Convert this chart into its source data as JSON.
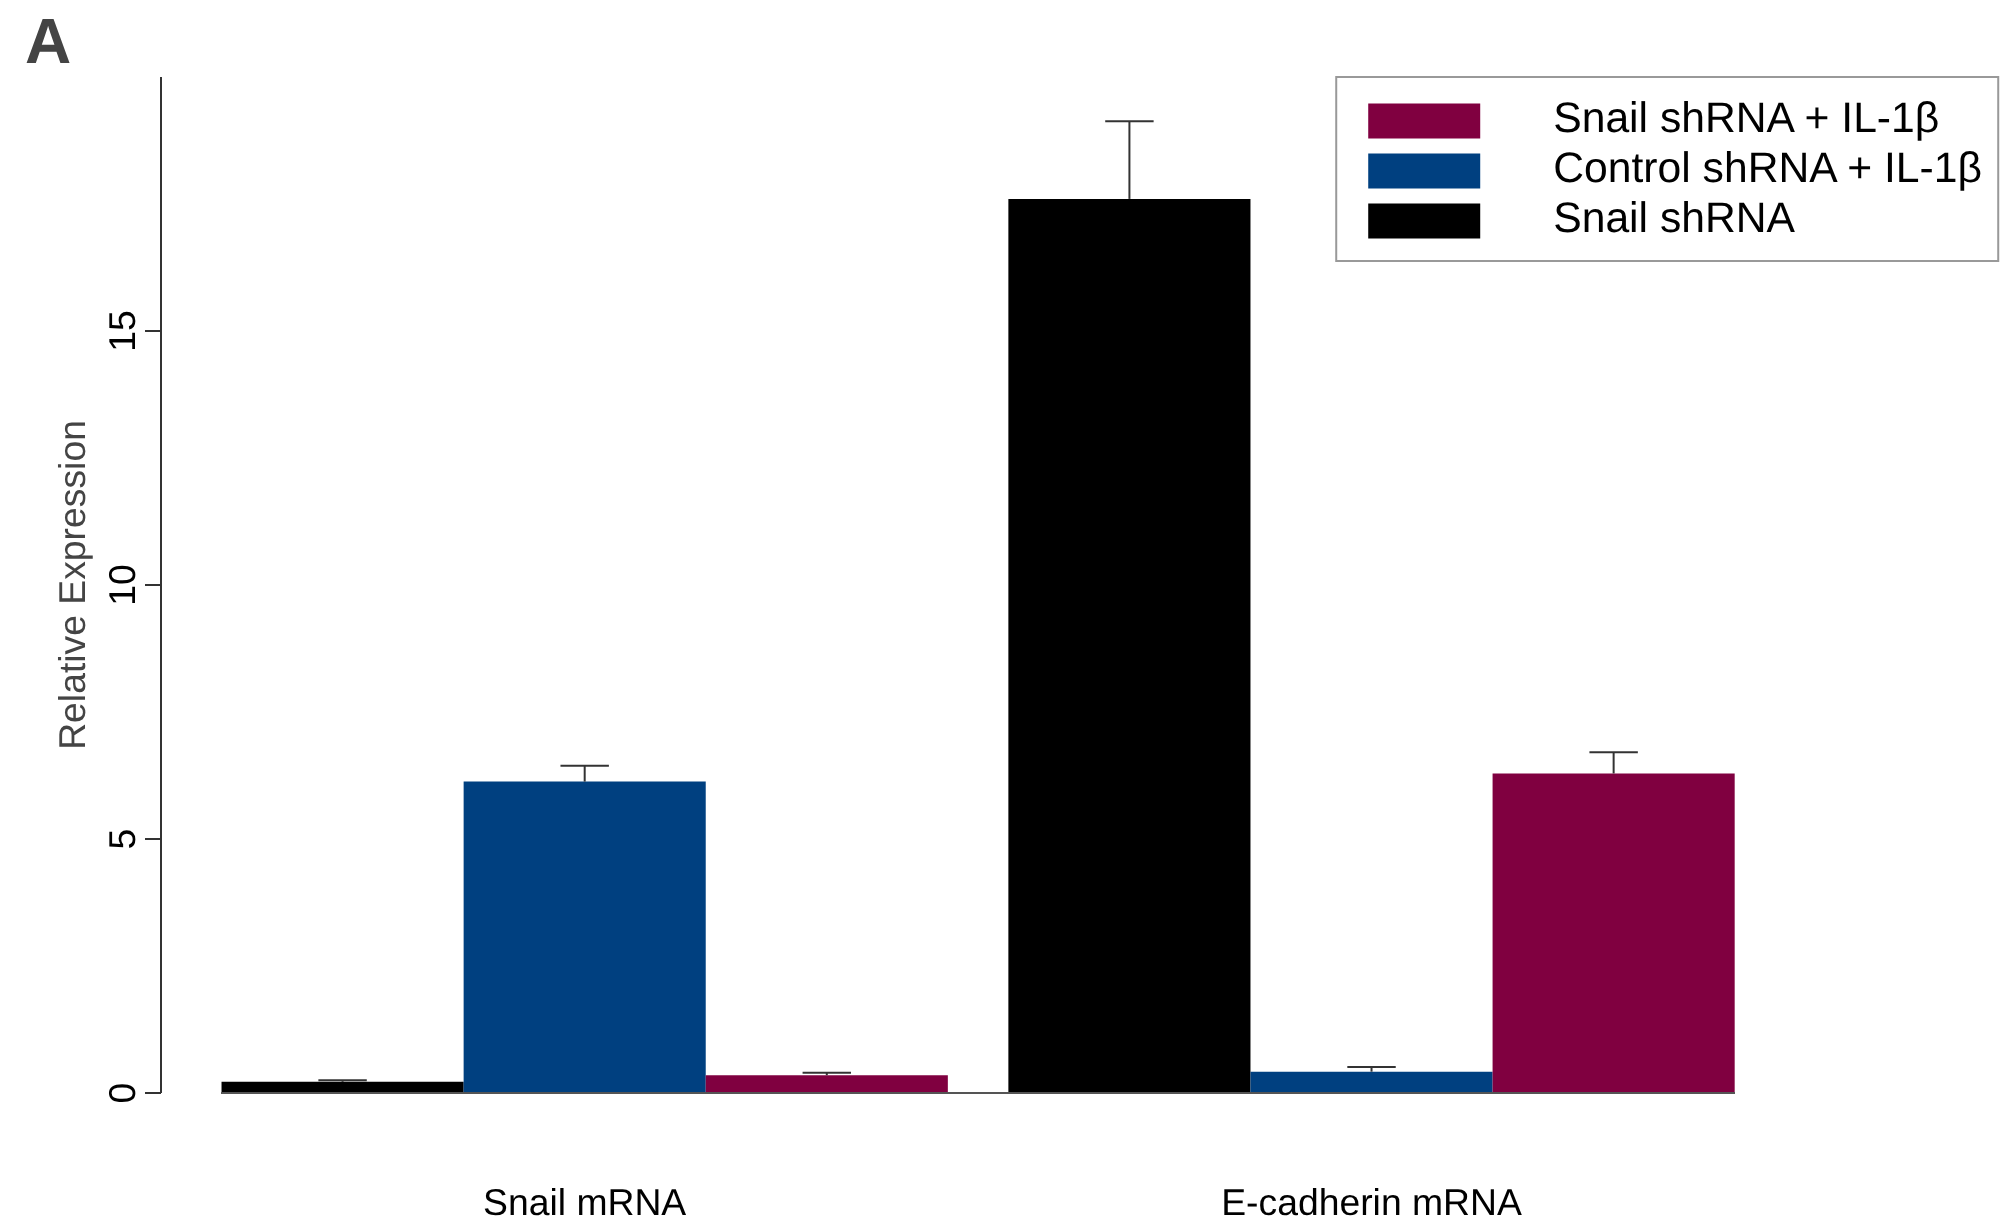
{
  "chart_data": {
    "type": "bar",
    "annotations": [
      "A"
    ],
    "ylabel": "Relative Expression",
    "categories": [
      "Snail mRNA",
      "E-cadherin mRNA"
    ],
    "series": [
      {
        "name": "Snail shRNA",
        "color": "#000000",
        "values": [
          0.22,
          17.6
        ],
        "errors": [
          [
            0.22,
            0.25
          ],
          [
            17.6,
            19.13
          ]
        ]
      },
      {
        "name": "Control shRNA + IL-1β",
        "color": "#004080",
        "values": [
          6.13,
          0.42
        ],
        "errors": [
          [
            6.13,
            6.44
          ],
          [
            0.42,
            0.51
          ]
        ]
      },
      {
        "name": "Snail shRNA + IL-1β",
        "color": "#800040",
        "values": [
          0.35,
          6.29
        ],
        "errors": [
          [
            0.35,
            0.4
          ],
          [
            6.29,
            6.71
          ]
        ]
      }
    ],
    "ylim": [
      0,
      20
    ],
    "yticks": [
      0,
      5,
      10,
      15
    ],
    "grid": false,
    "legend": "top right"
  }
}
